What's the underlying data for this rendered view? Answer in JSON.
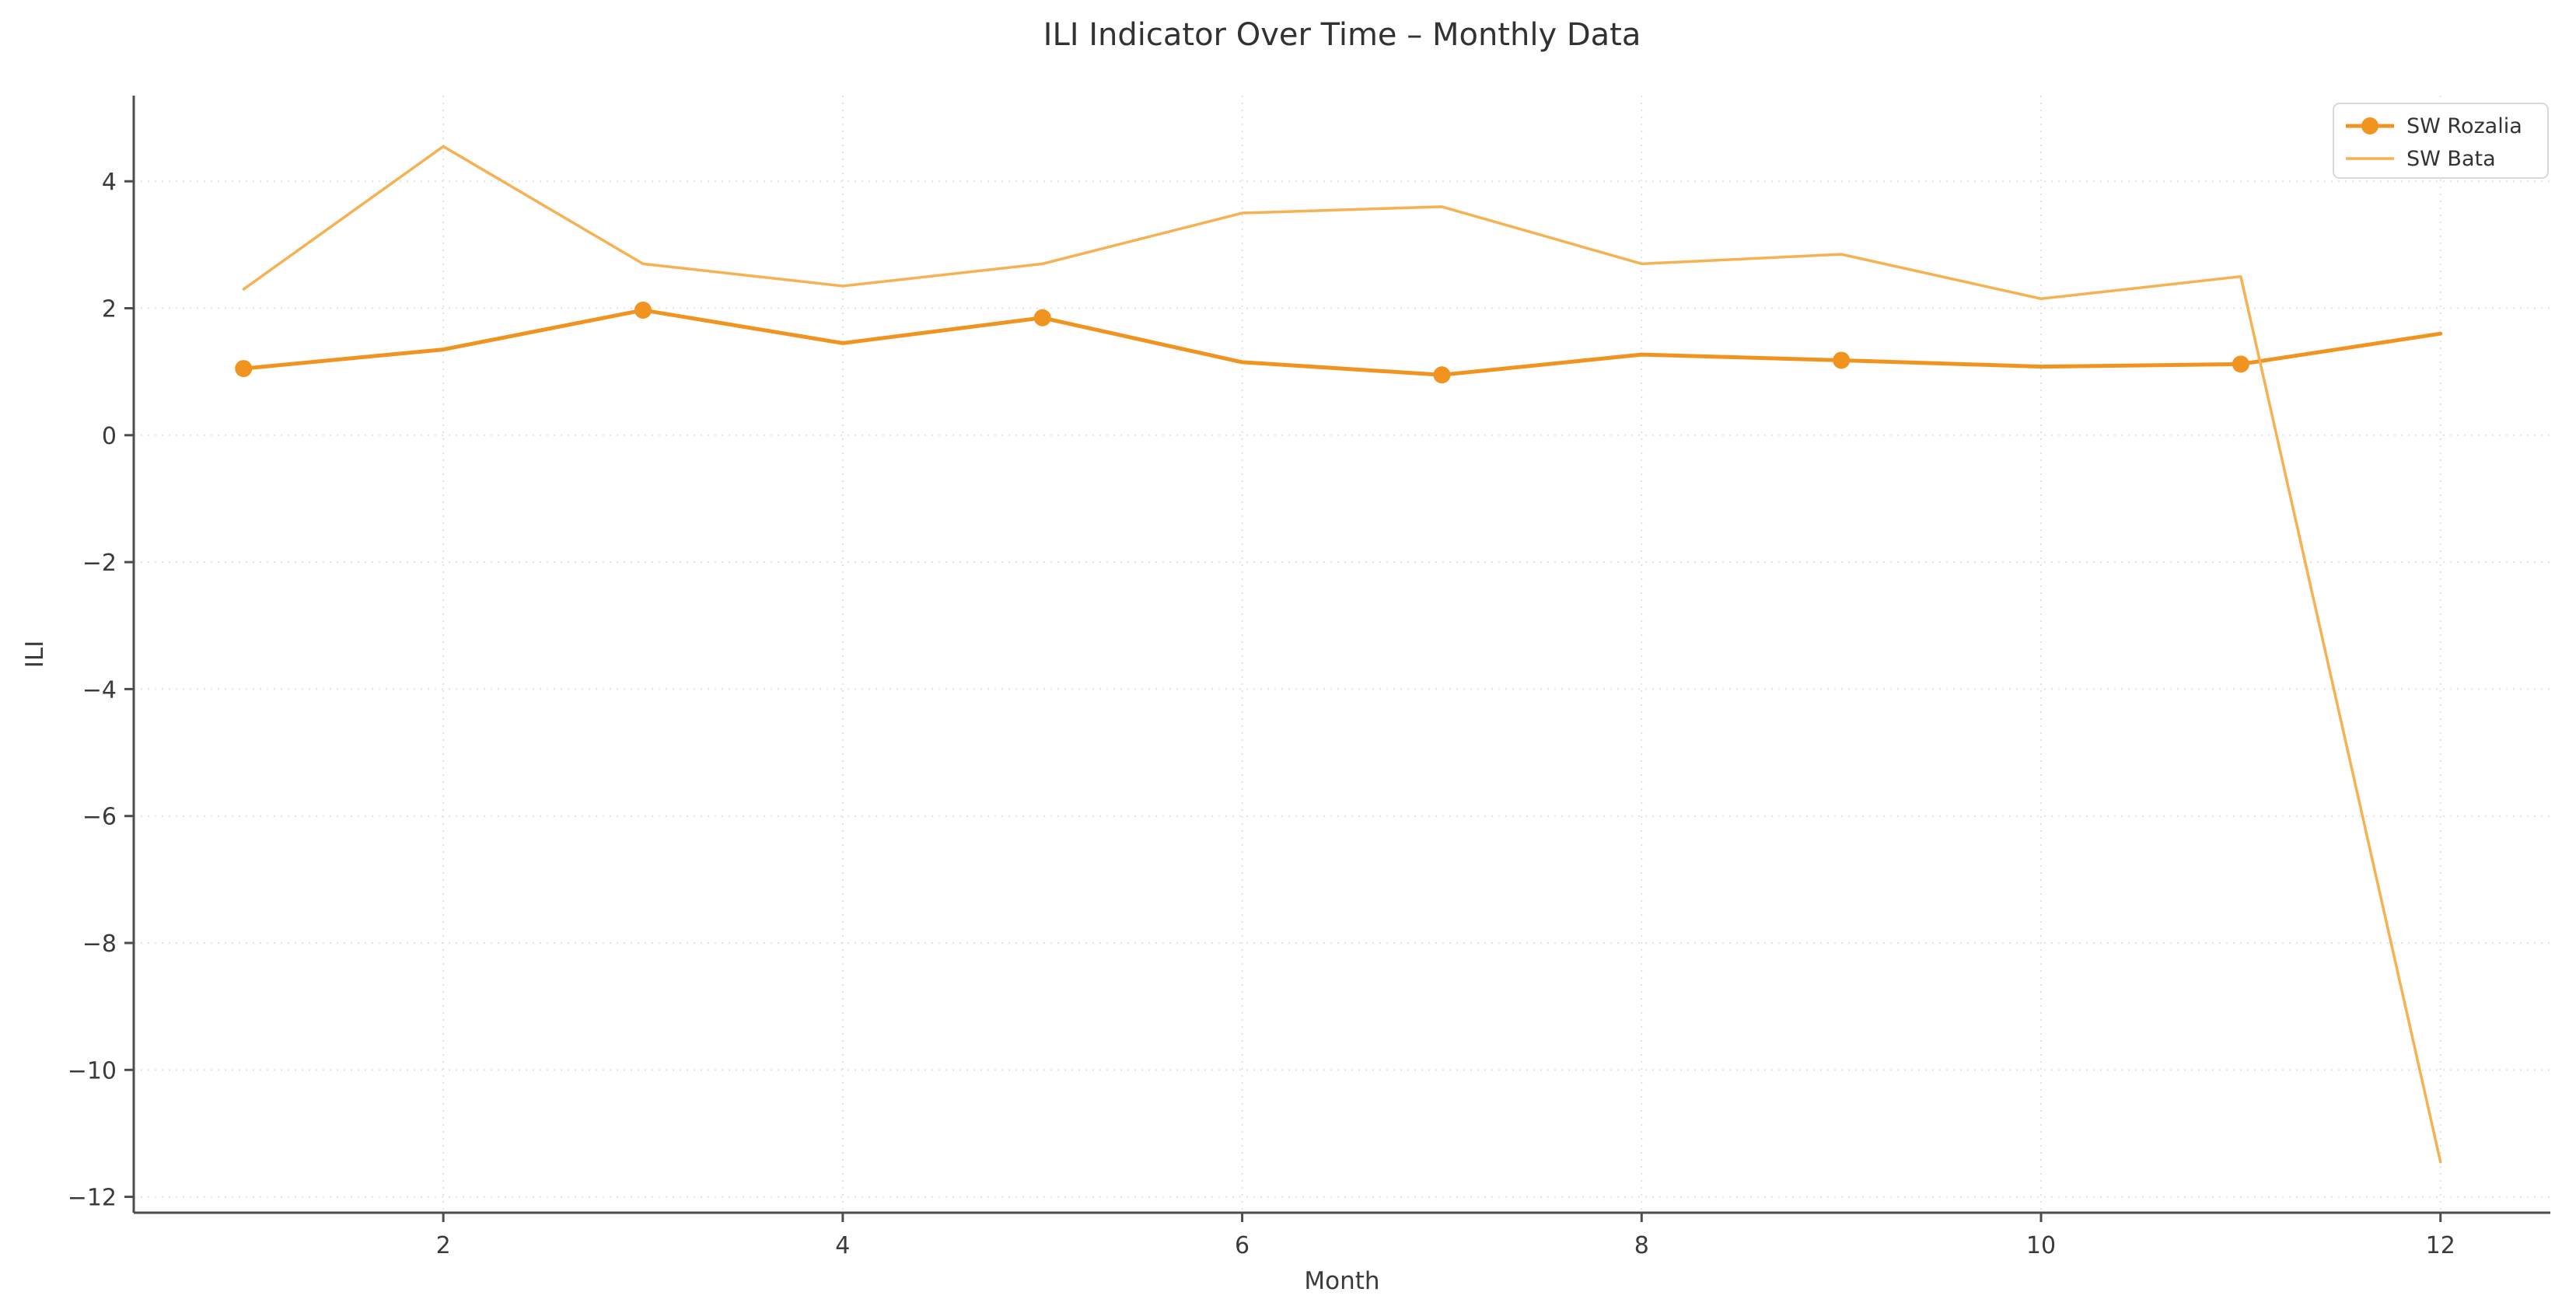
{
  "title": "ILI Indicator Over Time – Monthly Data",
  "chart_data": {
    "type": "line",
    "title": "ILI Indicator Over Time – Monthly Data",
    "xlabel": "Month",
    "ylabel": "ILI",
    "x": [
      1,
      2,
      3,
      4,
      5,
      6,
      7,
      8,
      9,
      10,
      11,
      12
    ],
    "series": [
      {
        "name": "SW Rozalia",
        "color": "#F0941F",
        "line_width": 5,
        "marker": "circle",
        "marker_radius": 11,
        "markevery": 2,
        "values": [
          1.05,
          1.35,
          1.97,
          1.45,
          1.85,
          1.15,
          0.95,
          1.27,
          1.18,
          1.08,
          1.12,
          1.6
        ]
      },
      {
        "name": "SW Bata",
        "color": "#F6B152",
        "line_width": 3.5,
        "marker": "none",
        "marker_radius": 0,
        "markevery": 0,
        "values": [
          2.3,
          4.55,
          2.7,
          2.35,
          2.7,
          3.5,
          3.6,
          2.7,
          2.85,
          2.15,
          2.5,
          -11.45
        ]
      }
    ],
    "xlim": [
      0.45,
      12.55
    ],
    "ylim": [
      -12.25,
      5.35
    ],
    "xticks": [
      2,
      4,
      6,
      8,
      10,
      12
    ],
    "xtick_labels": [
      "2",
      "4",
      "6",
      "8",
      "10",
      "12"
    ],
    "yticks": [
      4,
      2,
      0,
      -2,
      -4,
      -6,
      -8,
      -10,
      -12
    ],
    "ytick_labels": [
      "4",
      "2",
      "0",
      "−2",
      "−4",
      "−6",
      "−8",
      "−10",
      "−12"
    ],
    "grid": true,
    "legend_position": "upper right"
  },
  "legend": {
    "items": [
      {
        "label": "SW Rozalia"
      },
      {
        "label": "SW Bata"
      }
    ]
  }
}
